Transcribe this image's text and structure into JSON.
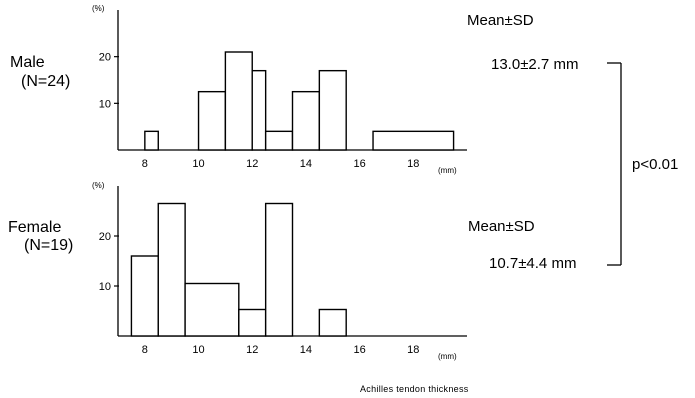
{
  "chart_data": [
    {
      "type": "bar",
      "histogram": true,
      "group_label": "Male",
      "n_label": "(N=24)",
      "bin_edges": [
        7,
        8,
        8.5,
        9.5,
        10,
        11,
        12,
        12.5,
        13.5,
        14.5,
        15.5,
        16.5,
        19.5
      ],
      "values": [
        0,
        4,
        0,
        0,
        12.5,
        21,
        17,
        4,
        12.5,
        17,
        0,
        4
      ],
      "ylim": [
        0,
        30
      ],
      "yticks": [
        "10",
        "20"
      ],
      "ylabel_unit": "(%)",
      "xticks": [
        "8",
        "10",
        "12",
        "14",
        "16",
        "18"
      ],
      "xlabel_unit": "(mm)",
      "stat_header": "Mean±SD",
      "stat_value": "13.0±2.7 mm"
    },
    {
      "type": "bar",
      "histogram": true,
      "group_label": "Female",
      "n_label": "(N=19)",
      "bin_edges": [
        7,
        7.5,
        8.5,
        9.5,
        11.5,
        12.5,
        13.5,
        14.5,
        15.5,
        19.5
      ],
      "values": [
        0,
        16,
        26.5,
        10.5,
        5.3,
        26.5,
        0,
        5.3,
        0
      ],
      "ylim": [
        0,
        30
      ],
      "yticks": [
        "10",
        "20"
      ],
      "ylabel_unit": "(%)",
      "xticks": [
        "8",
        "10",
        "12",
        "14",
        "16",
        "18"
      ],
      "xlabel_unit": "(mm)",
      "stat_header": "Mean±SD",
      "stat_value": "10.7±4.4 mm"
    }
  ],
  "comparison": {
    "p_value": "p<0.01"
  },
  "xlabel": "Achilles tendon thickness"
}
